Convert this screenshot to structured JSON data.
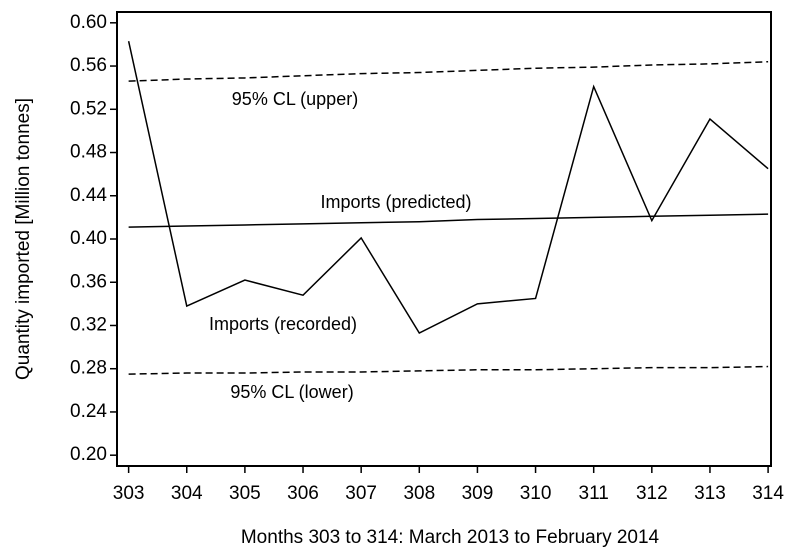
{
  "chart_data": {
    "type": "line",
    "x_label": "Months 303 to 314: March 2013 to February 2014",
    "y_label": "Quantity imported [Million tonnes]",
    "x": [
      303,
      304,
      305,
      306,
      307,
      308,
      309,
      310,
      311,
      312,
      313,
      314
    ],
    "series": [
      {
        "name": "Imports (recorded)",
        "color": "#000000",
        "style": "solid",
        "values": [
          0.583,
          0.338,
          0.362,
          0.348,
          0.401,
          0.313,
          0.34,
          0.345,
          0.541,
          0.417,
          0.511,
          0.465
        ]
      },
      {
        "name": "Imports (predicted)",
        "color": "#000000",
        "style": "solid",
        "values": [
          0.411,
          0.412,
          0.413,
          0.414,
          0.415,
          0.416,
          0.418,
          0.419,
          0.42,
          0.421,
          0.422,
          0.423
        ]
      },
      {
        "name": "95% CL (upper)",
        "color": "#000000",
        "style": "dashed",
        "values": [
          0.546,
          0.548,
          0.549,
          0.551,
          0.553,
          0.554,
          0.556,
          0.558,
          0.559,
          0.561,
          0.562,
          0.564
        ]
      },
      {
        "name": "95% CL (lower)",
        "color": "#000000",
        "style": "dashed",
        "values": [
          0.275,
          0.276,
          0.276,
          0.277,
          0.277,
          0.278,
          0.279,
          0.279,
          0.28,
          0.281,
          0.281,
          0.282
        ]
      }
    ],
    "xlim": [
      302.8,
      314.05
    ],
    "ylim": [
      0.19,
      0.61
    ],
    "xticks": [
      303,
      304,
      305,
      306,
      307,
      308,
      309,
      310,
      311,
      312,
      313,
      314
    ],
    "yticks": [
      {
        "value": 0.2,
        "label": "0.20"
      },
      {
        "value": 0.24,
        "label": "0.24"
      },
      {
        "value": 0.28,
        "label": "0.28"
      },
      {
        "value": 0.32,
        "label": "0.32"
      },
      {
        "value": 0.36,
        "label": "0.36"
      },
      {
        "value": 0.4,
        "label": "0.40"
      },
      {
        "value": 0.44,
        "label": "0.44"
      },
      {
        "value": 0.48,
        "label": "0.48"
      },
      {
        "value": 0.52,
        "label": "0.52"
      },
      {
        "value": 0.56,
        "label": "0.56"
      },
      {
        "value": 0.6,
        "label": "0.60"
      }
    ],
    "grid": false
  }
}
